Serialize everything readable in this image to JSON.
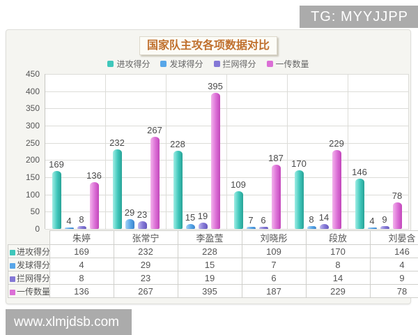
{
  "watermarks": {
    "top_right": "TG: MYYJJPP",
    "bottom_left": "www.xlmjdsb.com"
  },
  "chart_data": {
    "type": "bar",
    "title": "国家队主攻各项数据对比",
    "categories": [
      "朱婷",
      "张常宁",
      "李盈莹",
      "刘晓彤",
      "段放",
      "刘晏含"
    ],
    "series": [
      {
        "name": "进攻得分",
        "values": [
          169,
          232,
          228,
          109,
          170,
          146
        ],
        "color": "#3FC7BB",
        "color_light": "#9FEDE4",
        "color_dark": "#28A296"
      },
      {
        "name": "发球得分",
        "values": [
          4,
          29,
          15,
          7,
          8,
          4
        ],
        "color": "#58A6E8",
        "color_light": "#A9D3F5",
        "color_dark": "#3B82CB"
      },
      {
        "name": "拦网得分",
        "values": [
          8,
          23,
          19,
          6,
          14,
          9
        ],
        "color": "#8478D6",
        "color_light": "#C0B8EF",
        "color_dark": "#6558BC"
      },
      {
        "name": "一传数量",
        "values": [
          136,
          267,
          395,
          187,
          229,
          78
        ],
        "color": "#DB6FD6",
        "color_light": "#F3B3EC",
        "color_dark": "#C246BA"
      }
    ],
    "ylim": [
      0,
      450
    ],
    "yticks": [
      450,
      400,
      350,
      300,
      250,
      200,
      150,
      100,
      50,
      0
    ],
    "grid": true,
    "legend_position": "top",
    "data_table_shown": true
  }
}
